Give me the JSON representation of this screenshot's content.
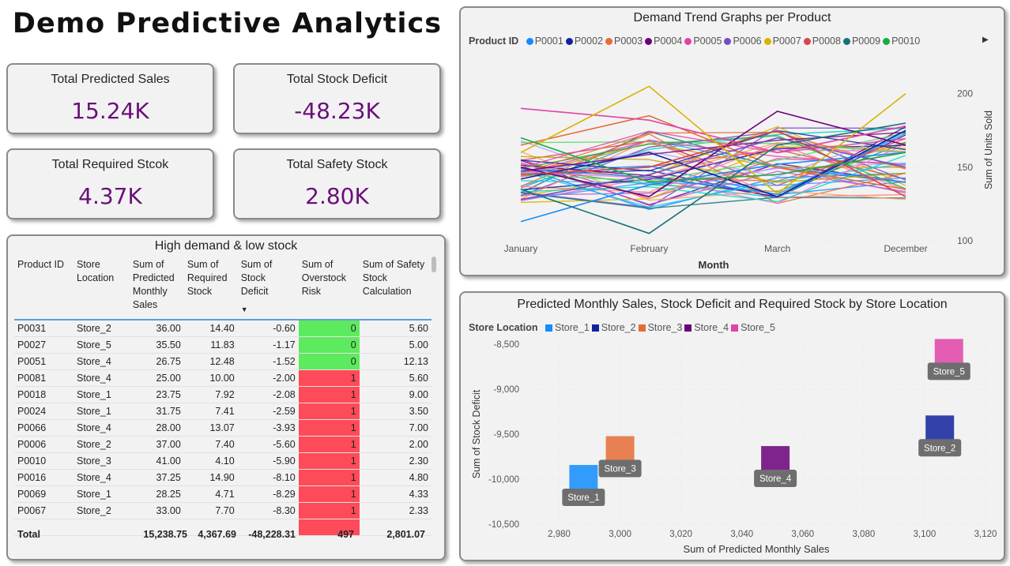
{
  "title": "Demo Predictive Analytics",
  "kpis": [
    {
      "label": "Total Predicted Sales",
      "value": "15.24K"
    },
    {
      "label": "Total Stock Deficit",
      "value": "-48.23K"
    },
    {
      "label": "Total Required Stcok",
      "value": "4.37K"
    },
    {
      "label": "Total Safety Stock",
      "value": "2.80K"
    }
  ],
  "table": {
    "title": "High demand & low stock",
    "headers": [
      "Product ID",
      "Store Location",
      "Sum of Predicted Monthly Sales",
      "Sum of Required Stock",
      "Sum of Stock Deficit",
      "Sum of Overstock Risk",
      "Sum of Safety Stock Calculation"
    ],
    "rows": [
      [
        "P0031",
        "Store_2",
        "36.00",
        "14.40",
        "-0.60",
        "0",
        "5.60"
      ],
      [
        "P0027",
        "Store_5",
        "35.50",
        "11.83",
        "-1.17",
        "0",
        "5.00"
      ],
      [
        "P0051",
        "Store_4",
        "26.75",
        "12.48",
        "-1.52",
        "0",
        "12.13"
      ],
      [
        "P0081",
        "Store_4",
        "25.00",
        "10.00",
        "-2.00",
        "1",
        "5.60"
      ],
      [
        "P0018",
        "Store_1",
        "23.75",
        "7.92",
        "-2.08",
        "1",
        "9.00"
      ],
      [
        "P0024",
        "Store_1",
        "31.75",
        "7.41",
        "-2.59",
        "1",
        "3.50"
      ],
      [
        "P0066",
        "Store_4",
        "28.00",
        "13.07",
        "-3.93",
        "1",
        "7.00"
      ],
      [
        "P0006",
        "Store_2",
        "37.00",
        "7.40",
        "-5.60",
        "1",
        "2.00"
      ],
      [
        "P0010",
        "Store_3",
        "41.00",
        "4.10",
        "-5.90",
        "1",
        "2.30"
      ],
      [
        "P0016",
        "Store_4",
        "37.25",
        "14.90",
        "-8.10",
        "1",
        "4.80"
      ],
      [
        "P0069",
        "Store_1",
        "28.25",
        "4.71",
        "-8.29",
        "1",
        "4.33"
      ],
      [
        "P0067",
        "Store_2",
        "33.00",
        "7.70",
        "-8.30",
        "1",
        "2.33"
      ]
    ],
    "total": {
      "label": "Total",
      "sales": "15,238.75",
      "required": "4,367.69",
      "deficit": "-48,228.31",
      "overstock": "497",
      "safety": "2,801.07"
    }
  },
  "trend": {
    "title": "Demand Trend Graphs per Product",
    "legend_label": "Product ID",
    "legend": [
      "P0001",
      "P0002",
      "P0003",
      "P0004",
      "P0005",
      "P0006",
      "P0007",
      "P0008",
      "P0009",
      "P0010"
    ],
    "legend_colors": [
      "#118dff",
      "#12239e",
      "#e66c37",
      "#6b007b",
      "#e044a7",
      "#744ec2",
      "#d9b300",
      "#d64550",
      "#197278",
      "#1aab40"
    ],
    "more_arrow": "▶",
    "xlabel": "Month",
    "ylabel": "Sum of Units Sold",
    "months": [
      "January",
      "February",
      "March",
      "December"
    ],
    "yticks": [
      "200",
      "150",
      "100"
    ]
  },
  "scatter": {
    "title": "Predicted Monthly Sales, Stock Deficit and Required Stock by Store Location",
    "legend_label": "Store Location",
    "xlabel": "Sum of Predicted Monthly Sales",
    "ylabel": "Sum of Stock Deficit",
    "xticks": [
      "2,980",
      "3,000",
      "3,020",
      "3,040",
      "3,060",
      "3,080",
      "3,100",
      "3,120"
    ],
    "yticks": [
      "-8,500",
      "-9,000",
      "-9,500",
      "-10,000",
      "-10,500"
    ]
  },
  "chart_data": [
    {
      "type": "scatter",
      "title": "Predicted Monthly Sales, Stock Deficit and Required Stock by Store Location",
      "xlabel": "Sum of Predicted Monthly Sales",
      "ylabel": "Sum of Stock Deficit",
      "xlim": [
        2970,
        3120
      ],
      "ylim": [
        -10500,
        -8500
      ],
      "series": [
        {
          "name": "Store_1",
          "color": "#118dff",
          "x": 2988,
          "y": -10000
        },
        {
          "name": "Store_2",
          "color": "#12239e",
          "x": 3105,
          "y": -9450
        },
        {
          "name": "Store_3",
          "color": "#e66c37",
          "x": 3000,
          "y": -9680
        },
        {
          "name": "Store_4",
          "color": "#6b007b",
          "x": 3051,
          "y": -9790
        },
        {
          "name": "Store_5",
          "color": "#e044a7",
          "x": 3108,
          "y": -8600
        }
      ]
    },
    {
      "type": "line",
      "title": "Demand Trend Graphs per Product",
      "xlabel": "Month",
      "ylabel": "Sum of Units Sold",
      "categories": [
        "January",
        "February",
        "March",
        "December"
      ],
      "ylim": [
        100,
        210
      ],
      "series": [
        {
          "name": "P0001",
          "values": [
            113,
            138,
            152,
            160
          ]
        },
        {
          "name": "P0002",
          "values": [
            142,
            160,
            130,
            175
          ]
        },
        {
          "name": "P0003",
          "values": [
            165,
            185,
            150,
            135
          ]
        },
        {
          "name": "P0004",
          "values": [
            150,
            130,
            188,
            165
          ]
        },
        {
          "name": "P0005",
          "values": [
            190,
            182,
            160,
            178
          ]
        },
        {
          "name": "P0006",
          "values": [
            128,
            145,
            170,
            150
          ]
        },
        {
          "name": "P0007",
          "values": [
            160,
            205,
            132,
            200
          ]
        },
        {
          "name": "P0008",
          "values": [
            145,
            150,
            175,
            130
          ]
        },
        {
          "name": "P0009",
          "values": [
            135,
            105,
            165,
            180
          ]
        },
        {
          "name": "P0010",
          "values": [
            170,
            140,
            145,
            160
          ]
        }
      ]
    }
  ]
}
